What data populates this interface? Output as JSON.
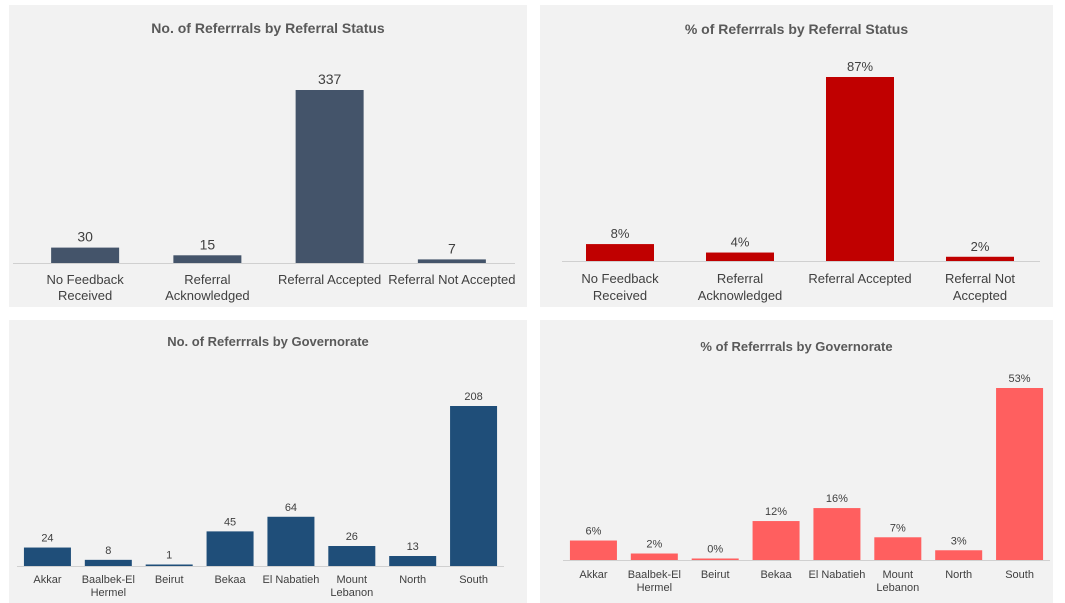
{
  "chart_data": [
    {
      "type": "bar",
      "title": "No. of Referrrals by Referral Status",
      "categories": [
        [
          "No Feedback",
          "Received"
        ],
        [
          "Referral",
          "Acknowledged"
        ],
        [
          "Referral Accepted"
        ],
        [
          "Referral Not Accepted"
        ]
      ],
      "values": [
        30,
        15,
        337,
        7
      ],
      "value_labels": [
        "30",
        "15",
        "337",
        "7"
      ],
      "color": "#44546a",
      "ylim": [
        0,
        337
      ],
      "grid": false,
      "legend": "none"
    },
    {
      "type": "bar",
      "title": "% of Referrrals by Referral Status",
      "categories": [
        [
          "No Feedback",
          "Received"
        ],
        [
          "Referral",
          "Acknowledged"
        ],
        [
          "Referral Accepted"
        ],
        [
          "Referral Not",
          "Accepted"
        ]
      ],
      "values": [
        8,
        4,
        87,
        2
      ],
      "value_labels": [
        "8%",
        "4%",
        "87%",
        "2%"
      ],
      "color": "#c00000",
      "ylim": [
        0,
        87
      ],
      "grid": false,
      "legend": "none"
    },
    {
      "type": "bar",
      "title": "No. of Referrrals by Governorate",
      "categories": [
        [
          "Akkar"
        ],
        [
          "Baalbek-El",
          "Hermel"
        ],
        [
          "Beirut"
        ],
        [
          "Bekaa"
        ],
        [
          "El Nabatieh"
        ],
        [
          "Mount",
          "Lebanon"
        ],
        [
          "North"
        ],
        [
          "South"
        ]
      ],
      "values": [
        24,
        8,
        1,
        45,
        64,
        26,
        13,
        208
      ],
      "value_labels": [
        "24",
        "8",
        "1",
        "45",
        "64",
        "26",
        "13",
        "208"
      ],
      "color": "#1f4e79",
      "ylim": [
        0,
        208
      ],
      "grid": false,
      "legend": "none"
    },
    {
      "type": "bar",
      "title": "% of Referrrals by Governorate",
      "categories": [
        [
          "Akkar"
        ],
        [
          "Baalbek-El",
          "Hermel"
        ],
        [
          "Beirut"
        ],
        [
          "Bekaa"
        ],
        [
          "El Nabatieh"
        ],
        [
          "Mount",
          "Lebanon"
        ],
        [
          "North"
        ],
        [
          "South"
        ]
      ],
      "values": [
        6,
        2,
        0,
        12,
        16,
        7,
        3,
        53
      ],
      "value_labels": [
        "6%",
        "2%",
        "0%",
        "12%",
        "16%",
        "7%",
        "3%",
        "53%"
      ],
      "color": "#ff5f5f",
      "ylim": [
        0,
        53
      ],
      "grid": false,
      "legend": "none"
    }
  ]
}
